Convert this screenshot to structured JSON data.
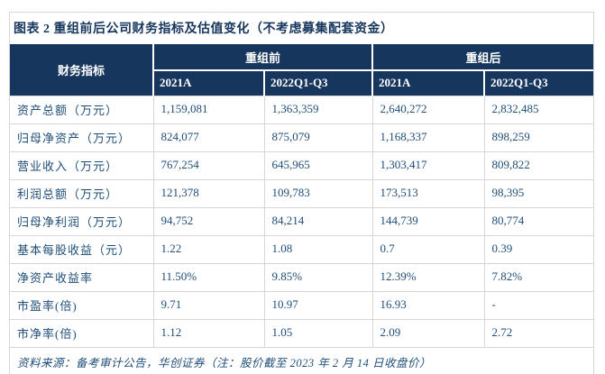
{
  "figure": {
    "title": "图表 2  重组前后公司财务指标及估值变化（不考虑募集配套资金）",
    "source_note": "资料来源：备考审计公告，华创证券（注：股价截至 2023 年 2 月 14 日收盘价）"
  },
  "colors": {
    "header_bg": "#17365D",
    "title_text": "#17365D",
    "body_text": "#1F4E79",
    "border": "#D6D6D6"
  },
  "chart_data": {
    "type": "table",
    "corner_label": "财务指标",
    "column_groups": [
      {
        "label": "重组前",
        "columns": [
          "2021A",
          "2022Q1-Q3"
        ]
      },
      {
        "label": "重组后",
        "columns": [
          "2021A",
          "2022Q1-Q3"
        ]
      }
    ],
    "rows": [
      {
        "label": "资产总额（万元）",
        "values": [
          "1,159,081",
          "1,363,359",
          "2,640,272",
          "2,832,485"
        ]
      },
      {
        "label": "归母净资产（万元）",
        "values": [
          "824,077",
          "875,079",
          "1,168,337",
          "898,259"
        ]
      },
      {
        "label": "营业收入（万元）",
        "values": [
          "767,254",
          "645,965",
          "1,303,417",
          "809,822"
        ]
      },
      {
        "label": "利润总额（万元）",
        "values": [
          "121,378",
          "109,783",
          "173,513",
          "98,395"
        ]
      },
      {
        "label": "归母净利润（万元）",
        "values": [
          "94,752",
          "84,214",
          "144,739",
          "80,774"
        ]
      },
      {
        "label": "基本每股收益（元）",
        "values": [
          "1.22",
          "1.08",
          "0.7",
          "0.39"
        ]
      },
      {
        "label": "净资产收益率",
        "values": [
          "11.50%",
          "9.85%",
          "12.39%",
          "7.82%"
        ]
      },
      {
        "label": "市盈率(倍)",
        "values": [
          "9.71",
          "10.97",
          "16.93",
          "-"
        ]
      },
      {
        "label": "市净率(倍)",
        "values": [
          "1.12",
          "1.05",
          "2.09",
          "2.72"
        ]
      }
    ]
  }
}
